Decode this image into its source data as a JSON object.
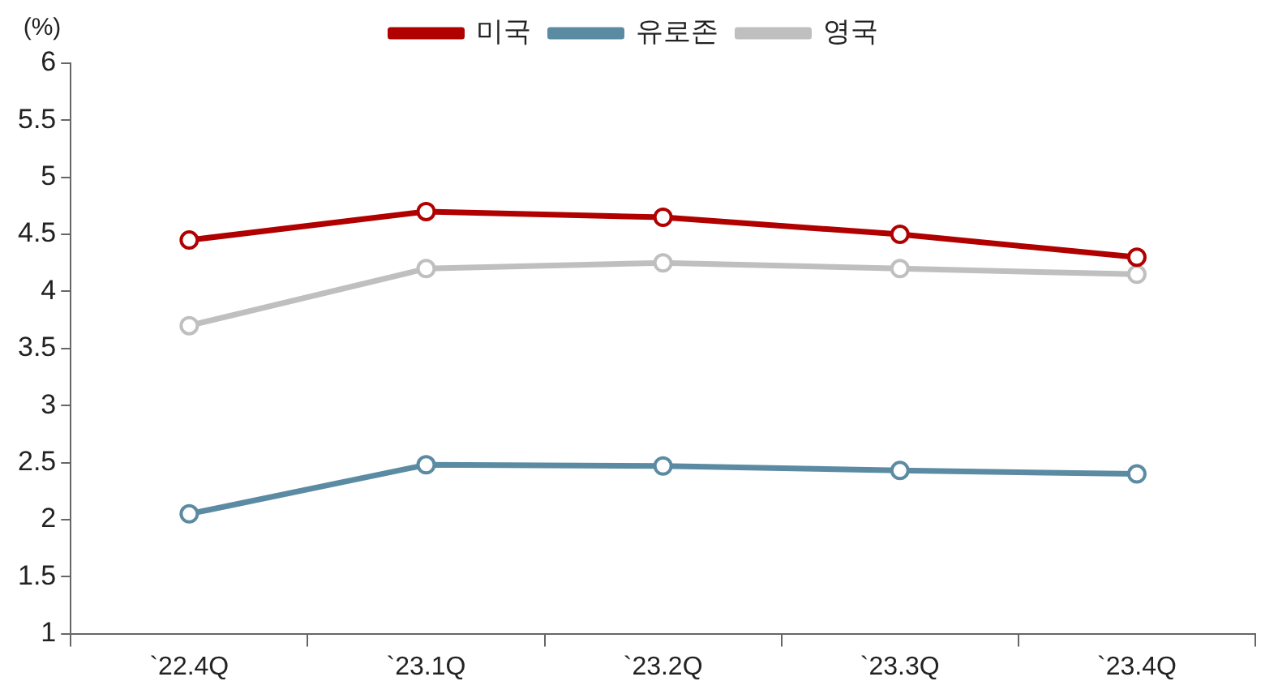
{
  "chart_data": {
    "type": "line",
    "ylabel": "(%)",
    "categories": [
      "`22.4Q",
      "`23.1Q",
      "`23.2Q",
      "`23.3Q",
      "`23.4Q"
    ],
    "series": [
      {
        "name": "미국",
        "color": "#b00000",
        "values": [
          4.45,
          4.7,
          4.65,
          4.5,
          4.3
        ]
      },
      {
        "name": "유로존",
        "color": "#5b8ba3",
        "values": [
          2.05,
          2.48,
          2.47,
          2.43,
          2.4
        ]
      },
      {
        "name": "영국",
        "color": "#bfbfbf",
        "values": [
          3.7,
          4.2,
          4.25,
          4.2,
          4.15
        ]
      }
    ],
    "ylim": [
      1,
      6
    ],
    "yticks": [
      1,
      1.5,
      2,
      2.5,
      3,
      3.5,
      4,
      4.5,
      5,
      5.5,
      6
    ],
    "grid": false,
    "legend": "top",
    "marker": "circle",
    "line_style": "solid"
  }
}
